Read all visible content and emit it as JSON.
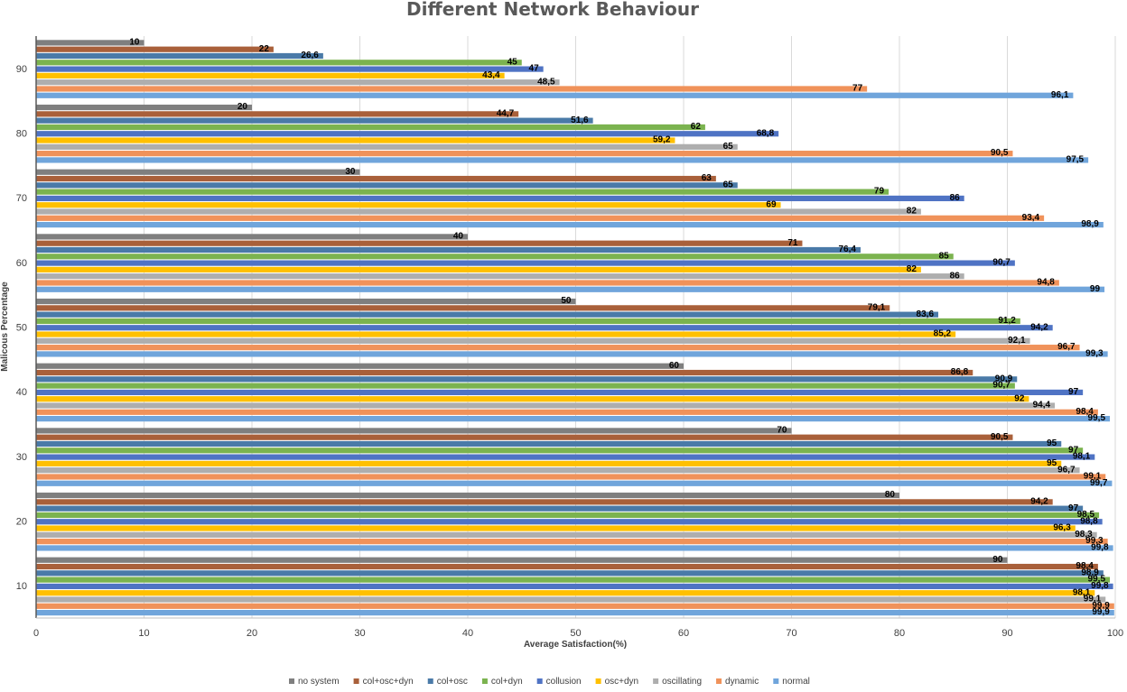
{
  "chart_data": {
    "type": "bar",
    "orientation": "horizontal",
    "title": "Different Network Behaviour",
    "xlabel": "Average Satisfaction(%)",
    "ylabel": "Malicous Percentage",
    "xlim": [
      0,
      100
    ],
    "x_ticks": [
      "0",
      "10",
      "20",
      "30",
      "40",
      "50",
      "60",
      "70",
      "80",
      "90",
      "100"
    ],
    "categories": [
      "90",
      "80",
      "70",
      "60",
      "50",
      "40",
      "30",
      "20",
      "10"
    ],
    "legend_position": "bottom",
    "series": [
      {
        "name": "no system",
        "color": "#7f7f7f",
        "values": [
          10,
          20,
          30,
          40,
          50,
          60,
          70,
          80,
          90
        ],
        "labels": [
          "10",
          "20",
          "30",
          "40",
          "50",
          "60",
          "70",
          "80",
          "90"
        ]
      },
      {
        "name": "col+osc+dyn",
        "color": "#a9603a",
        "values": [
          22,
          44.7,
          63,
          71,
          79.1,
          86.8,
          90.5,
          94.2,
          98.4
        ],
        "labels": [
          "22",
          "44,7",
          "63",
          "71",
          "79,1",
          "86,8",
          "90,5",
          "94,2",
          "98,4"
        ]
      },
      {
        "name": "col+osc",
        "color": "#4a7aa8",
        "values": [
          26.6,
          51.6,
          65,
          76.4,
          83.6,
          90.9,
          95,
          97,
          98.9
        ],
        "labels": [
          "26,6",
          "51,6",
          "65",
          "76,4",
          "83,6",
          "90,9",
          "95",
          "97",
          "98,9"
        ]
      },
      {
        "name": "col+dyn",
        "color": "#7bb34f",
        "values": [
          45,
          62,
          79,
          85,
          91.2,
          90.7,
          97,
          98.5,
          99.5
        ],
        "labels": [
          "45",
          "62",
          "79",
          "85",
          "91,2",
          "90,7",
          "97",
          "98,5",
          "99,5"
        ]
      },
      {
        "name": "collusion",
        "color": "#4f73c4",
        "values": [
          47,
          68.8,
          86,
          90.7,
          94.2,
          97,
          98.1,
          98.8,
          99.8
        ],
        "labels": [
          "47",
          "68,8",
          "86",
          "90,7",
          "94,2",
          "97",
          "98,1",
          "98,8",
          "99,8"
        ]
      },
      {
        "name": "osc+dyn",
        "color": "#ffc000",
        "values": [
          43.4,
          59.2,
          69,
          82,
          85.2,
          92,
          95,
          96.3,
          98.1
        ],
        "labels": [
          "43,4",
          "59,2",
          "69",
          "82",
          "85,2",
          "92",
          "95",
          "96,3",
          "98,1"
        ]
      },
      {
        "name": "oscillating",
        "color": "#aeaeae",
        "values": [
          48.5,
          65,
          82,
          86,
          92.1,
          94.4,
          96.7,
          98.3,
          99.1
        ],
        "labels": [
          "48,5",
          "65",
          "82",
          "86",
          "92,1",
          "94,4",
          "96,7",
          "98,3",
          "99,1"
        ]
      },
      {
        "name": "dynamic",
        "color": "#f0925a",
        "values": [
          77,
          90.5,
          93.4,
          94.8,
          96.7,
          98.4,
          99.1,
          99.3,
          99.9
        ],
        "labels": [
          "77",
          "90,5",
          "93,4",
          "94,8",
          "96,7",
          "98,4",
          "99,1",
          "99,3",
          "99,9"
        ]
      },
      {
        "name": "normal",
        "color": "#70a5db",
        "values": [
          96.1,
          97.5,
          98.9,
          99,
          99.3,
          99.5,
          99.7,
          99.8,
          99.9
        ],
        "labels": [
          "96,1",
          "97,5",
          "98,9",
          "99",
          "99,3",
          "99,5",
          "99,7",
          "99,8",
          "99,9"
        ]
      }
    ]
  }
}
